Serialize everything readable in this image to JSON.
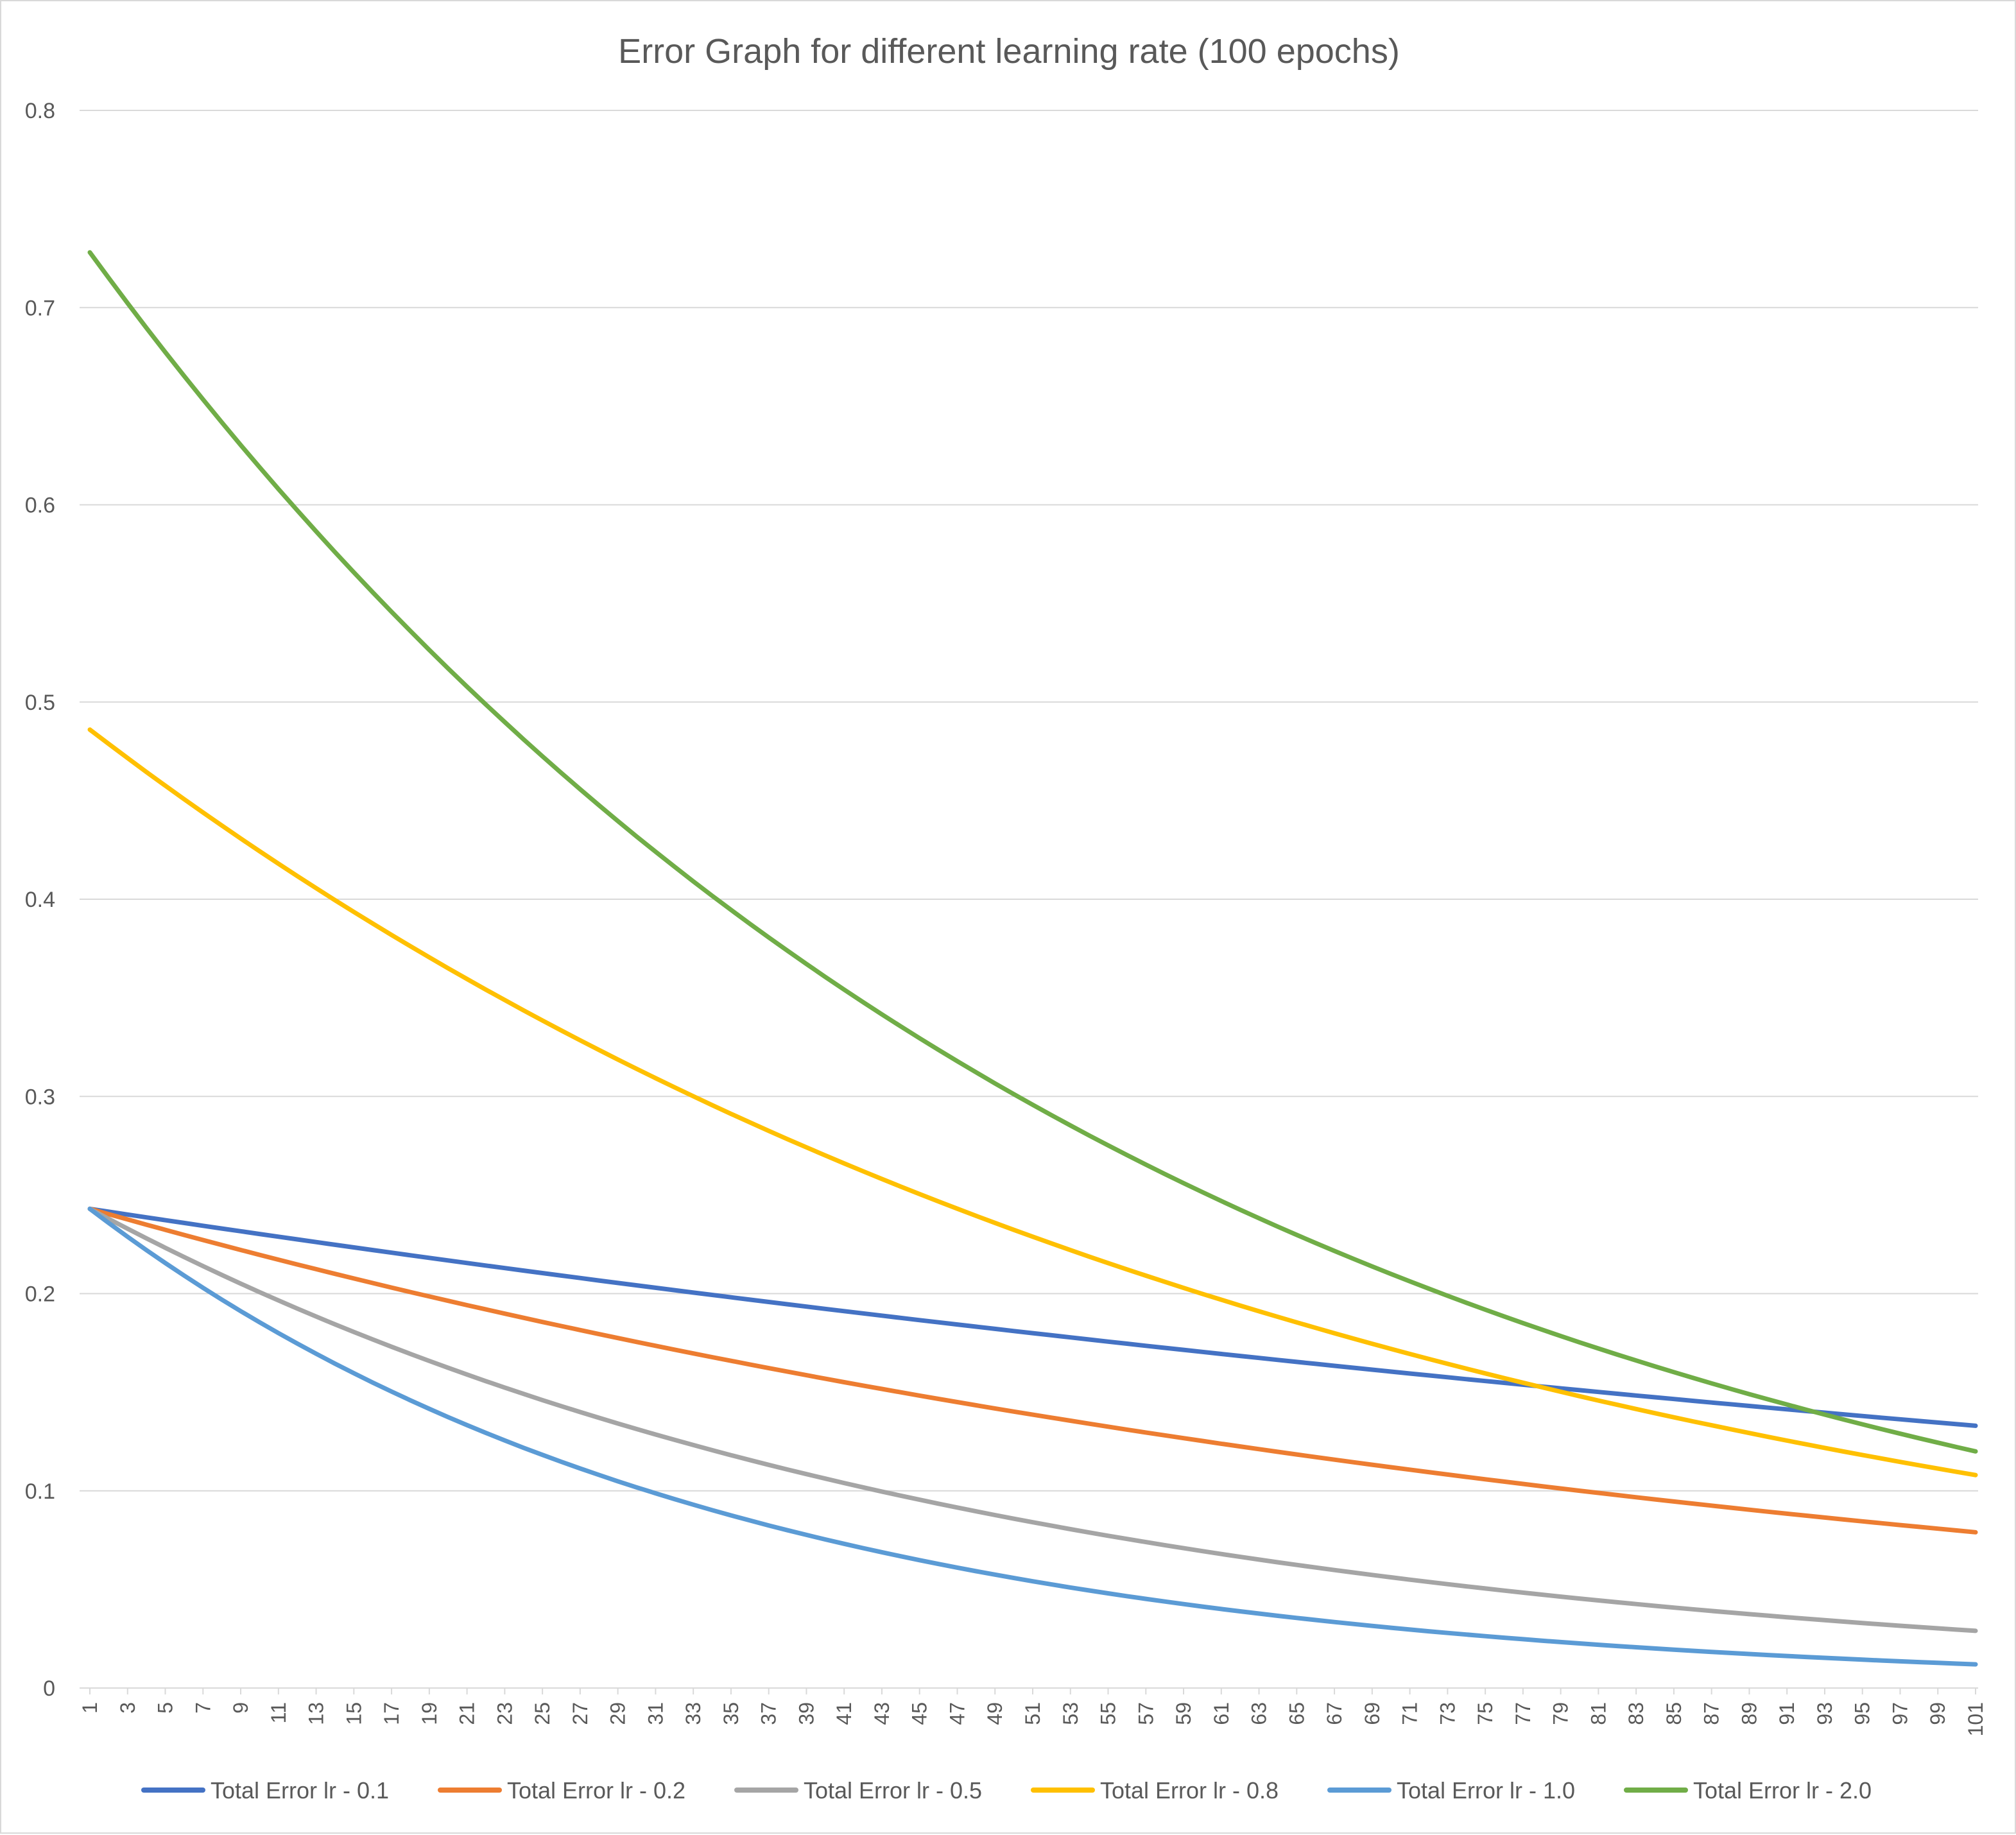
{
  "chart_data": {
    "type": "line",
    "title": "Error Graph for different learning rate (100 epochs)",
    "xlabel": "",
    "ylabel": "",
    "ylim": [
      0,
      0.8
    ],
    "yticks": [
      "0",
      "0.1",
      "0.2",
      "0.3",
      "0.4",
      "0.5",
      "0.6",
      "0.7",
      "0.8"
    ],
    "x_range": [
      1,
      101
    ],
    "xtick_step": 2,
    "grid": "horizontal",
    "legend_position": "bottom",
    "series": [
      {
        "name": "Total Error lr - 0.1",
        "color": "#4472C4",
        "y_start": 0.243,
        "y_end": 0.133,
        "decay": 0.0059
      },
      {
        "name": "Total Error lr - 0.2",
        "color": "#ED7D31",
        "y_start": 0.243,
        "y_end": 0.079,
        "decay": 0.0112
      },
      {
        "name": "Total Error lr - 0.5",
        "color": "#A5A5A5",
        "y_start": 0.243,
        "y_end": 0.029,
        "decay": 0.0212
      },
      {
        "name": "Total Error lr - 0.8",
        "color": "#FFC000",
        "y_start": 0.486,
        "y_end": 0.108,
        "decay": 0.0151
      },
      {
        "name": "Total Error lr - 1.0",
        "color": "#5B9BD5",
        "y_start": 0.243,
        "y_end": 0.012,
        "decay": 0.03
      },
      {
        "name": "Total Error lr - 2.0",
        "color": "#70AD47",
        "y_start": 0.728,
        "y_end": 0.12,
        "decay": 0.018
      }
    ]
  }
}
